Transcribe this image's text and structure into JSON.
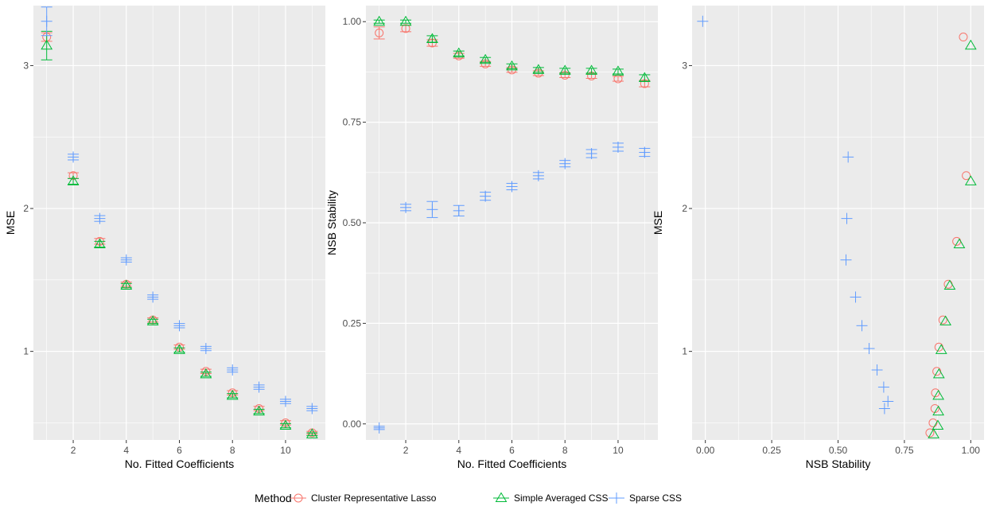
{
  "legend": {
    "title": "Method",
    "items": [
      {
        "label": "Cluster Representative Lasso",
        "color": "#F8766D",
        "shape": "circle"
      },
      {
        "label": "Simple Averaged CSS",
        "color": "#00BA38",
        "shape": "triangle"
      },
      {
        "label": "Sparse CSS",
        "color": "#619CFF",
        "shape": "plus"
      }
    ]
  },
  "chart_data": [
    {
      "type": "scatter",
      "title": "",
      "xlabel": "No. Fitted Coefficients",
      "ylabel": "MSE",
      "xlim": [
        0.5,
        11.5
      ],
      "ylim": [
        0.38,
        3.42
      ],
      "xticks": [
        2,
        4,
        6,
        8,
        10
      ],
      "xtick_labels": [
        "2",
        "4",
        "6",
        "8",
        "10"
      ],
      "yticks": [
        1,
        2,
        3
      ],
      "ytick_labels": [
        "1",
        "2",
        "3"
      ],
      "grid": true,
      "error_bars": true,
      "series": [
        {
          "name": "Cluster Representative Lasso",
          "x": [
            1,
            2,
            3,
            4,
            5,
            6,
            7,
            8,
            9,
            10,
            11
          ],
          "y": [
            3.2,
            2.23,
            1.77,
            1.47,
            1.22,
            1.03,
            0.86,
            0.71,
            0.6,
            0.5,
            0.43
          ],
          "err": [
            0.03,
            0.02,
            0.02,
            0.015,
            0.015,
            0.015,
            0.015,
            0.015,
            0.015,
            0.015,
            0.01
          ]
        },
        {
          "name": "Simple Averaged CSS",
          "x": [
            1,
            2,
            3,
            4,
            5,
            6,
            7,
            8,
            9,
            10,
            11
          ],
          "y": [
            3.14,
            2.19,
            1.75,
            1.46,
            1.21,
            1.01,
            0.84,
            0.69,
            0.58,
            0.48,
            0.42
          ],
          "err": [
            0.1,
            0.02,
            0.02,
            0.015,
            0.015,
            0.015,
            0.015,
            0.015,
            0.015,
            0.015,
            0.01
          ]
        },
        {
          "name": "Sparse CSS",
          "x": [
            1,
            2,
            3,
            4,
            5,
            6,
            7,
            8,
            9,
            10,
            11
          ],
          "y": [
            3.31,
            2.36,
            1.93,
            1.64,
            1.38,
            1.18,
            1.02,
            0.87,
            0.75,
            0.65,
            0.6
          ],
          "err": [
            0.1,
            0.02,
            0.02,
            0.015,
            0.015,
            0.015,
            0.015,
            0.015,
            0.015,
            0.015,
            0.015
          ]
        }
      ]
    },
    {
      "type": "scatter",
      "title": "",
      "xlabel": "No. Fitted Coefficients",
      "ylabel": "NSB Stability",
      "xlim": [
        0.5,
        11.5
      ],
      "ylim": [
        -0.04,
        1.04
      ],
      "xticks": [
        2,
        4,
        6,
        8,
        10
      ],
      "xtick_labels": [
        "2",
        "4",
        "6",
        "8",
        "10"
      ],
      "yticks": [
        0,
        0.25,
        0.5,
        0.75,
        1
      ],
      "ytick_labels": [
        "0.00",
        "0.25",
        "0.50",
        "0.75",
        "1.00"
      ],
      "grid": true,
      "error_bars": true,
      "series": [
        {
          "name": "Cluster Representative Lasso",
          "x": [
            1,
            2,
            3,
            4,
            5,
            6,
            7,
            8,
            9,
            10,
            11
          ],
          "y": [
            0.972,
            0.983,
            0.947,
            0.915,
            0.895,
            0.88,
            0.872,
            0.867,
            0.865,
            0.858,
            0.846
          ],
          "err": [
            0.015,
            0.008,
            0.008,
            0.006,
            0.006,
            0.006,
            0.006,
            0.006,
            0.006,
            0.006,
            0.008
          ]
        },
        {
          "name": "Simple Averaged CSS",
          "x": [
            1,
            2,
            3,
            4,
            5,
            6,
            7,
            8,
            9,
            10,
            11
          ],
          "y": [
            1.0,
            1.0,
            0.957,
            0.921,
            0.905,
            0.889,
            0.88,
            0.878,
            0.878,
            0.876,
            0.86
          ],
          "err": [
            0.004,
            0.004,
            0.008,
            0.006,
            0.006,
            0.006,
            0.006,
            0.006,
            0.006,
            0.006,
            0.008
          ]
        },
        {
          "name": "Sparse CSS",
          "x": [
            1,
            2,
            3,
            4,
            5,
            6,
            7,
            8,
            9,
            10,
            11
          ],
          "y": [
            -0.01,
            0.538,
            0.533,
            0.53,
            0.566,
            0.59,
            0.617,
            0.647,
            0.672,
            0.688,
            0.675
          ],
          "err": [
            0.004,
            0.008,
            0.02,
            0.013,
            0.01,
            0.008,
            0.008,
            0.008,
            0.01,
            0.01,
            0.01
          ]
        }
      ]
    },
    {
      "type": "scatter",
      "title": "",
      "xlabel": "NSB Stability",
      "ylabel": "MSE",
      "xlim": [
        -0.05,
        1.05
      ],
      "ylim": [
        0.38,
        3.42
      ],
      "xticks": [
        0,
        0.25,
        0.5,
        0.75,
        1
      ],
      "xtick_labels": [
        "0.00",
        "0.25",
        "0.50",
        "0.75",
        "1.00"
      ],
      "yticks": [
        1,
        2,
        3
      ],
      "ytick_labels": [
        "1",
        "2",
        "3"
      ],
      "grid": true,
      "error_bars": false,
      "series": [
        {
          "name": "Cluster Representative Lasso",
          "x": [
            0.972,
            0.983,
            0.947,
            0.915,
            0.895,
            0.88,
            0.872,
            0.867,
            0.865,
            0.858,
            0.846
          ],
          "y": [
            3.2,
            2.23,
            1.77,
            1.47,
            1.22,
            1.03,
            0.86,
            0.71,
            0.6,
            0.5,
            0.43
          ]
        },
        {
          "name": "Simple Averaged CSS",
          "x": [
            1.0,
            1.0,
            0.957,
            0.921,
            0.905,
            0.889,
            0.88,
            0.878,
            0.878,
            0.876,
            0.86
          ],
          "y": [
            3.14,
            2.19,
            1.75,
            1.46,
            1.21,
            1.01,
            0.84,
            0.69,
            0.58,
            0.48,
            0.42
          ]
        },
        {
          "name": "Sparse CSS",
          "x": [
            -0.01,
            0.538,
            0.533,
            0.53,
            0.566,
            0.59,
            0.617,
            0.647,
            0.672,
            0.688,
            0.675
          ],
          "y": [
            3.31,
            2.36,
            1.93,
            1.64,
            1.38,
            1.18,
            1.02,
            0.87,
            0.75,
            0.65,
            0.6
          ]
        }
      ]
    }
  ]
}
